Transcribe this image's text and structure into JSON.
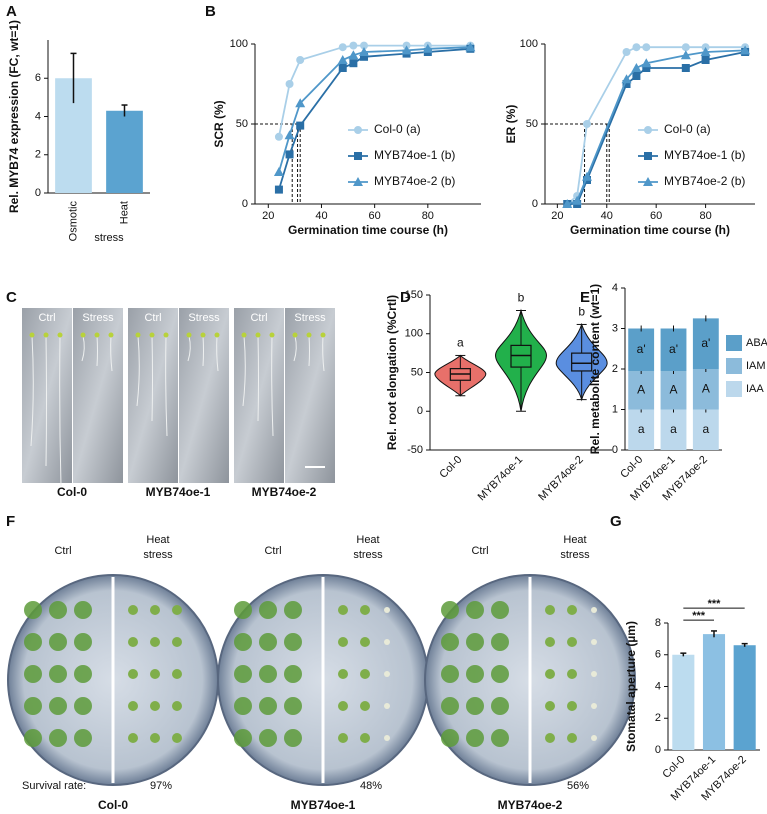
{
  "panel_labels": [
    "A",
    "B",
    "C",
    "D",
    "E",
    "F",
    "G"
  ],
  "photos": {
    "C": {
      "conditions": [
        "Ctrl",
        "Stress"
      ],
      "genotypes": [
        "Col-0",
        "MYB74oe-1",
        "MYB74oe-2"
      ]
    },
    "F": {
      "ctrl": "Ctrl",
      "stress_lines": [
        "Heat",
        "stress"
      ],
      "survival_label": "Survival rate:",
      "survival_rates": [
        "97%",
        "48%",
        "56%"
      ],
      "genotypes": [
        "Col-0",
        "MYB74oe-1",
        "MYB74oe-2"
      ]
    }
  },
  "chart_data": [
    {
      "type": "bar",
      "y_label": "Rel. MYB74 expression (FC, wt=1)",
      "x_label": "stress",
      "categories": [
        "Osmotic",
        "Heat"
      ],
      "values": [
        6.0,
        4.3
      ],
      "errors": [
        1.3,
        0.3
      ],
      "colors": [
        "#bcdcef",
        "#5ba3d0"
      ],
      "ylim": [
        0,
        8
      ],
      "yticks": [
        0,
        2,
        4,
        6
      ]
    },
    {
      "type": "line",
      "y_label": "SCR (%)",
      "x_label": "Germination time course (h)",
      "x": [
        24,
        28,
        32,
        48,
        52,
        56,
        72,
        80,
        96
      ],
      "series": [
        {
          "name": "Col-0 (a)",
          "color": "#a9cfe8",
          "marker": "circle",
          "values": [
            42,
            75,
            90,
            98,
            99,
            99,
            99,
            99,
            99
          ]
        },
        {
          "name": "MYB74oe-1 (b)",
          "color": "#2a6fa6",
          "marker": "square",
          "values": [
            9,
            31,
            49,
            85,
            88,
            92,
            94,
            95,
            97
          ]
        },
        {
          "name": "MYB74oe-2 (b)",
          "color": "#4f97c9",
          "marker": "triangle",
          "values": [
            20,
            43,
            63,
            90,
            93,
            95,
            96,
            97,
            98
          ]
        }
      ],
      "xlim": [
        15,
        100
      ],
      "xticks": [
        20,
        40,
        60,
        80
      ],
      "ylim": [
        0,
        100
      ],
      "yticks": [
        0,
        50,
        100
      ],
      "ref_y": 50,
      "ref_x": [
        29,
        31,
        32
      ]
    },
    {
      "type": "line",
      "y_label": "ER (%)",
      "x_label": "Germination time course (h)",
      "x": [
        24,
        28,
        32,
        48,
        52,
        56,
        72,
        80,
        96
      ],
      "series": [
        {
          "name": "Col-0 (a)",
          "color": "#a9cfe8",
          "marker": "circle",
          "values": [
            0,
            5,
            50,
            95,
            98,
            98,
            98,
            98,
            98
          ]
        },
        {
          "name": "MYB74oe-1 (b)",
          "color": "#2a6fa6",
          "marker": "square",
          "values": [
            0,
            0,
            15,
            75,
            80,
            85,
            85,
            90,
            95
          ]
        },
        {
          "name": "MYB74oe-2 (b)",
          "color": "#4f97c9",
          "marker": "triangle",
          "values": [
            0,
            2,
            17,
            78,
            85,
            88,
            93,
            95,
            96
          ]
        }
      ],
      "xlim": [
        15,
        100
      ],
      "xticks": [
        20,
        40,
        60,
        80
      ],
      "ylim": [
        0,
        100
      ],
      "yticks": [
        0,
        50,
        100
      ],
      "ref_y": 50,
      "ref_x": [
        31,
        40,
        41
      ]
    },
    {
      "type": "violin",
      "y_label": "Rel. root elongation (%Crtl)",
      "categories": [
        "Col-0",
        "MYB74oe-1",
        "MYB74oe-2"
      ],
      "colors": [
        "#e8706a",
        "#22b04b",
        "#5a8ee0"
      ],
      "min": [
        20,
        0,
        15
      ],
      "q1": [
        40,
        57,
        52
      ],
      "median": [
        48,
        72,
        62
      ],
      "q3": [
        55,
        85,
        75
      ],
      "max": [
        72,
        130,
        112
      ],
      "letters": [
        "a",
        "b",
        "b"
      ],
      "ylim": [
        -50,
        150
      ],
      "yticks": [
        -50,
        0,
        50,
        100,
        150
      ]
    },
    {
      "type": "stacked_bar",
      "y_label": "Rel. metabolite content (wt=1)",
      "categories": [
        "Col-0",
        "MYB74oe-1",
        "MYB74oe-2"
      ],
      "series": [
        {
          "name": "IAA",
          "color": "#bcd8ec",
          "values": [
            1.0,
            1.0,
            1.0
          ],
          "segment_labels": [
            "a",
            "a",
            "a"
          ]
        },
        {
          "name": "IAM",
          "color": "#8cbbdb",
          "values": [
            0.95,
            0.95,
            1.0
          ],
          "segment_labels": [
            "A",
            "A",
            "A"
          ]
        },
        {
          "name": "ABA",
          "color": "#5b9fc9",
          "values": [
            1.05,
            1.05,
            1.25
          ],
          "segment_labels": [
            "a'",
            "a'",
            "a'"
          ]
        }
      ],
      "ylim": [
        0,
        4
      ],
      "yticks": [
        0,
        1,
        2,
        3,
        4
      ]
    },
    {
      "type": "bar",
      "y_label": "Stomatal aperture (µm)",
      "categories": [
        "Col-0",
        "MYB74oe-1",
        "MYB74oe-2"
      ],
      "values": [
        6.0,
        7.3,
        6.6
      ],
      "errors": [
        0.1,
        0.2,
        0.1
      ],
      "colors": [
        "#bcdcef",
        "#8cc0e3",
        "#5ba3d0"
      ],
      "ylim": [
        0,
        8
      ],
      "yticks": [
        0,
        2,
        4,
        6,
        8
      ],
      "annotations": [
        "***",
        "***"
      ]
    }
  ]
}
